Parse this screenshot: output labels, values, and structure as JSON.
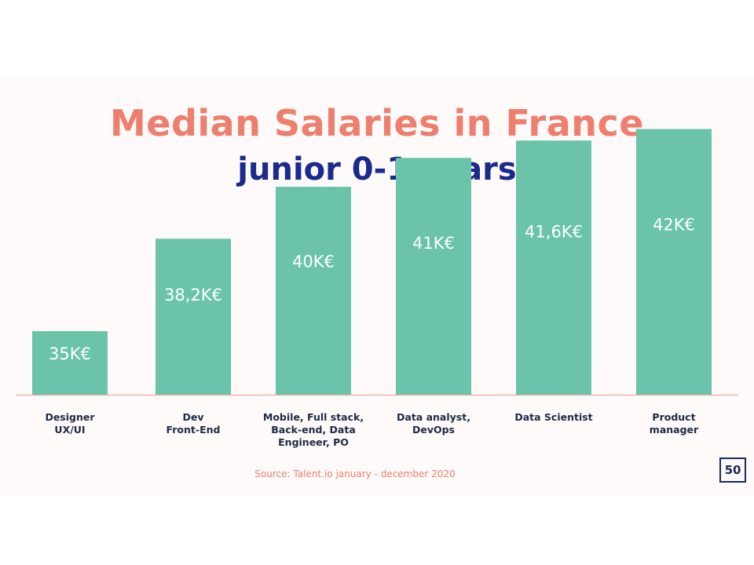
{
  "colors": {
    "title": "#ee7f6e",
    "subtitle": "#1b2a8c",
    "bar": "#6bc4a9",
    "baseline": "#f1b4aa",
    "source": "#ee7f6e",
    "logo": "#1b2a5c"
  },
  "chart_data": {
    "type": "bar",
    "title": "Median Salaries in France",
    "subtitle": "junior 0-1 years",
    "categories": [
      [
        "Designer",
        "UX/UI"
      ],
      [
        "Dev",
        "Front-End"
      ],
      [
        "Mobile, Full stack,",
        "Back-end, Data",
        "Engineer, PO"
      ],
      [
        "Data analyst,",
        "DevOps"
      ],
      [
        "Data Scientist"
      ],
      [
        "Product",
        "manager"
      ]
    ],
    "values": [
      35,
      38.2,
      40,
      41,
      41.6,
      42
    ],
    "value_labels": [
      "35K€",
      "38,2K€",
      "40K€",
      "41K€",
      "41,6K€",
      "42K€"
    ],
    "unit": "K€",
    "grid": false,
    "legend": "none"
  },
  "source": "Source: Talent.io january - december 2020",
  "logo_text": "50"
}
